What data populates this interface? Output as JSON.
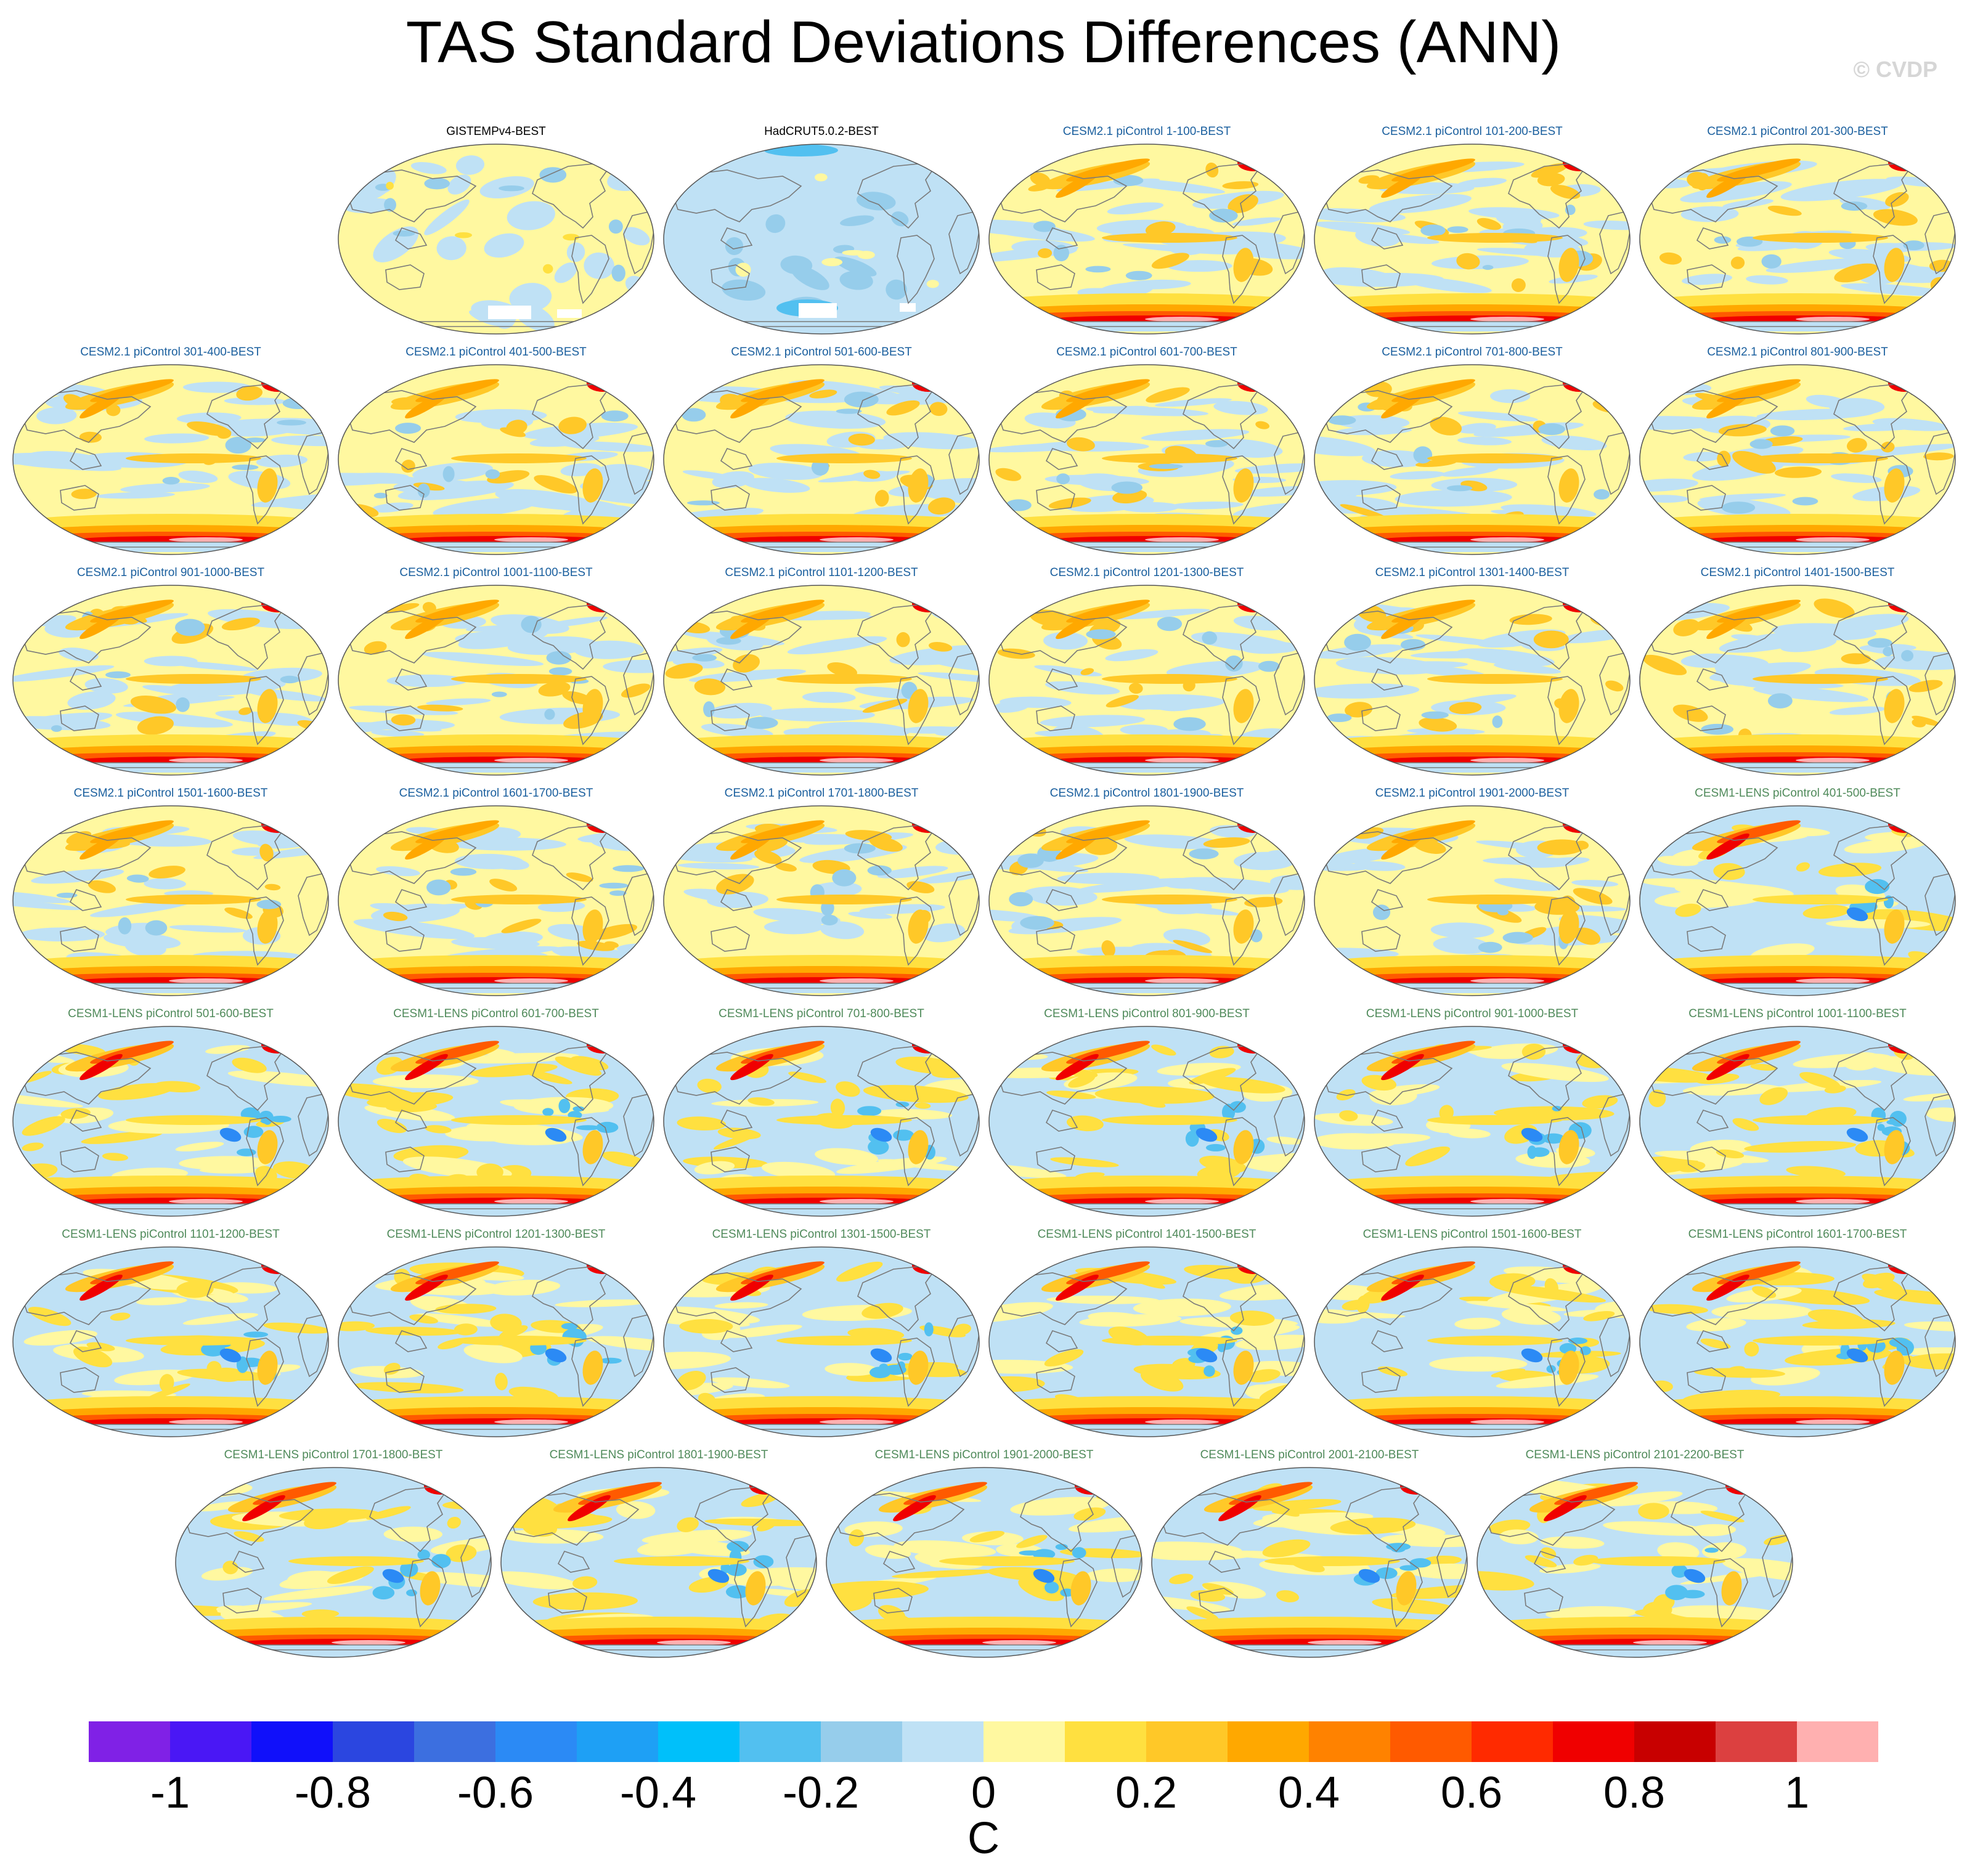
{
  "title": "TAS Standard Deviations Differences (ANN)",
  "watermark": "© CVDP",
  "colors": {
    "obs_title": "#000000",
    "cesm2_title": "#1a5f9e",
    "cesm1_title": "#4f8a5a",
    "coast": "#7a7a7a",
    "map_border": "#555555"
  },
  "panels": [
    {
      "title": "GISTEMPv4-BEST",
      "group": "obs",
      "style": "obs1"
    },
    {
      "title": "HadCRUT5.0.2-BEST",
      "group": "obs",
      "style": "obs2"
    },
    {
      "title": "CESM2.1 piControl 1-100-BEST",
      "group": "cesm2",
      "style": "model2"
    },
    {
      "title": "CESM2.1 piControl 101-200-BEST",
      "group": "cesm2",
      "style": "model2"
    },
    {
      "title": "CESM2.1 piControl 201-300-BEST",
      "group": "cesm2",
      "style": "model2"
    },
    {
      "title": "CESM2.1 piControl 301-400-BEST",
      "group": "cesm2",
      "style": "model2"
    },
    {
      "title": "CESM2.1 piControl 401-500-BEST",
      "group": "cesm2",
      "style": "model2"
    },
    {
      "title": "CESM2.1 piControl 501-600-BEST",
      "group": "cesm2",
      "style": "model2"
    },
    {
      "title": "CESM2.1 piControl 601-700-BEST",
      "group": "cesm2",
      "style": "model2"
    },
    {
      "title": "CESM2.1 piControl 701-800-BEST",
      "group": "cesm2",
      "style": "model2"
    },
    {
      "title": "CESM2.1 piControl 801-900-BEST",
      "group": "cesm2",
      "style": "model2"
    },
    {
      "title": "CESM2.1 piControl 901-1000-BEST",
      "group": "cesm2",
      "style": "model2"
    },
    {
      "title": "CESM2.1 piControl 1001-1100-BEST",
      "group": "cesm2",
      "style": "model2"
    },
    {
      "title": "CESM2.1 piControl 1101-1200-BEST",
      "group": "cesm2",
      "style": "model2"
    },
    {
      "title": "CESM2.1 piControl 1201-1300-BEST",
      "group": "cesm2",
      "style": "model2"
    },
    {
      "title": "CESM2.1 piControl 1301-1400-BEST",
      "group": "cesm2",
      "style": "model2"
    },
    {
      "title": "CESM2.1 piControl 1401-1500-BEST",
      "group": "cesm2",
      "style": "model2"
    },
    {
      "title": "CESM2.1 piControl 1501-1600-BEST",
      "group": "cesm2",
      "style": "model2"
    },
    {
      "title": "CESM2.1 piControl 1601-1700-BEST",
      "group": "cesm2",
      "style": "model2"
    },
    {
      "title": "CESM2.1 piControl 1701-1800-BEST",
      "group": "cesm2",
      "style": "model2"
    },
    {
      "title": "CESM2.1 piControl 1801-1900-BEST",
      "group": "cesm2",
      "style": "model2"
    },
    {
      "title": "CESM2.1 piControl 1901-2000-BEST",
      "group": "cesm2",
      "style": "model2"
    },
    {
      "title": "CESM1-LENS piControl 401-500-BEST",
      "group": "cesm1",
      "style": "model1"
    },
    {
      "title": "CESM1-LENS piControl 501-600-BEST",
      "group": "cesm1",
      "style": "model1"
    },
    {
      "title": "CESM1-LENS piControl 601-700-BEST",
      "group": "cesm1",
      "style": "model1"
    },
    {
      "title": "CESM1-LENS piControl 701-800-BEST",
      "group": "cesm1",
      "style": "model1"
    },
    {
      "title": "CESM1-LENS piControl 801-900-BEST",
      "group": "cesm1",
      "style": "model1"
    },
    {
      "title": "CESM1-LENS piControl 901-1000-BEST",
      "group": "cesm1",
      "style": "model1"
    },
    {
      "title": "CESM1-LENS piControl 1001-1100-BEST",
      "group": "cesm1",
      "style": "model1"
    },
    {
      "title": "CESM1-LENS piControl 1101-1200-BEST",
      "group": "cesm1",
      "style": "model1"
    },
    {
      "title": "CESM1-LENS piControl 1201-1300-BEST",
      "group": "cesm1",
      "style": "model1"
    },
    {
      "title": "CESM1-LENS piControl 1301-1500-BEST",
      "group": "cesm1",
      "style": "model1"
    },
    {
      "title": "CESM1-LENS piControl 1401-1500-BEST",
      "group": "cesm1",
      "style": "model1"
    },
    {
      "title": "CESM1-LENS piControl 1501-1600-BEST",
      "group": "cesm1",
      "style": "model1"
    },
    {
      "title": "CESM1-LENS piControl 1601-1700-BEST",
      "group": "cesm1",
      "style": "model1"
    },
    {
      "title": "CESM1-LENS piControl 1701-1800-BEST",
      "group": "cesm1",
      "style": "model1"
    },
    {
      "title": "CESM1-LENS piControl 1801-1900-BEST",
      "group": "cesm1",
      "style": "model1"
    },
    {
      "title": "CESM1-LENS piControl 1901-2000-BEST",
      "group": "cesm1",
      "style": "model1"
    },
    {
      "title": "CESM1-LENS piControl 2001-2100-BEST",
      "group": "cesm1",
      "style": "model1"
    },
    {
      "title": "CESM1-LENS piControl 2101-2200-BEST",
      "group": "cesm1",
      "style": "model1"
    }
  ],
  "colorbar": {
    "unit_label": "C",
    "colors": [
      "#8021e6",
      "#4a17f5",
      "#1010fa",
      "#2b46e0",
      "#3c6fe0",
      "#2b8af5",
      "#1ea0f5",
      "#00c0fa",
      "#52c0f0",
      "#96cdeb",
      "#bfe1f5",
      "#fff8a0",
      "#ffe040",
      "#ffc828",
      "#ffa800",
      "#ff8200",
      "#ff5a00",
      "#ff2a00",
      "#f00000",
      "#c80000",
      "#dc4040",
      "#ffb0b0"
    ],
    "tick_labels": [
      "-1",
      "-0.8",
      "-0.6",
      "-0.4",
      "-0.2",
      "0",
      "0.2",
      "0.4",
      "0.6",
      "0.8",
      "1"
    ]
  }
}
